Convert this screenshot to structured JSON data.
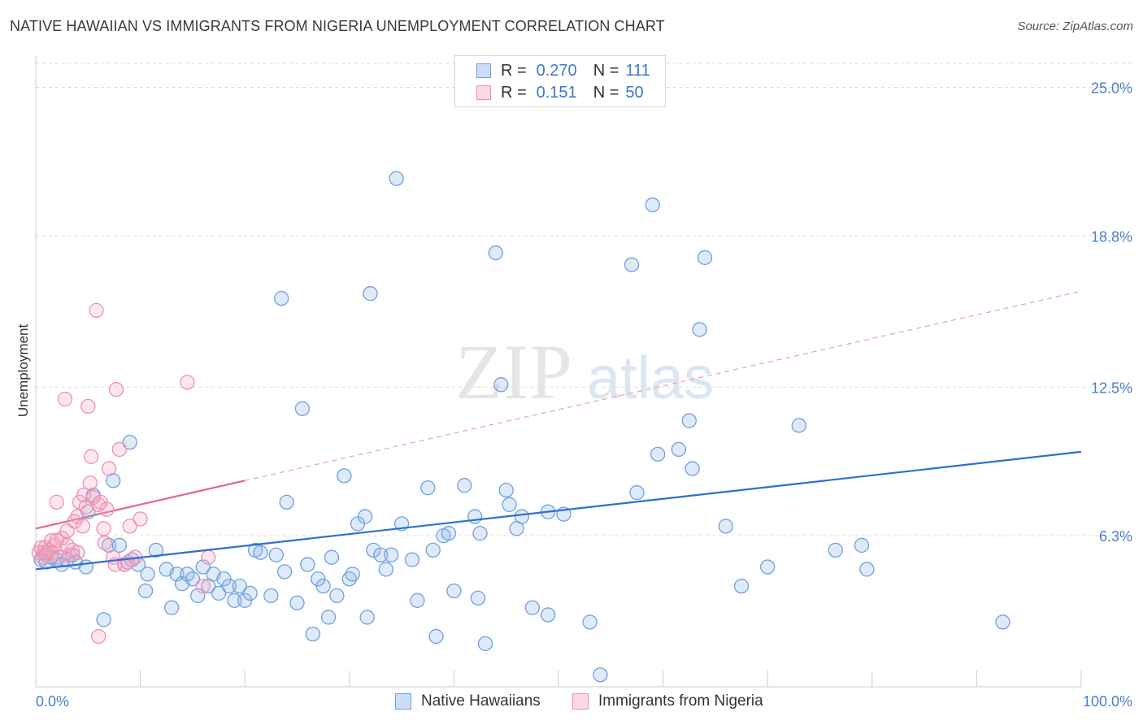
{
  "title": "NATIVE HAWAIIAN VS IMMIGRANTS FROM NIGERIA UNEMPLOYMENT CORRELATION CHART",
  "source": "Source: ZipAtlas.com",
  "watermark": {
    "zip": "ZIP",
    "atlas": "atlas"
  },
  "legend": {
    "rows": [
      {
        "r_label": "R =",
        "r_value": "0.270",
        "n_label": "N =",
        "n_value": "111",
        "color": "#6fa0e0"
      },
      {
        "r_label": "R =",
        "r_value": "0.151",
        "n_label": "N =",
        "n_value": "50",
        "color": "#f08fb0"
      }
    ]
  },
  "bottom_legend": [
    {
      "label": "Native Hawaiians",
      "color": "#6fa0e0"
    },
    {
      "label": "Immigrants from Nigeria",
      "color": "#f08fb0"
    }
  ],
  "chart_data": {
    "type": "scatter",
    "title": "NATIVE HAWAIIAN VS IMMIGRANTS FROM NIGERIA UNEMPLOYMENT CORRELATION CHART",
    "xlabel": "",
    "ylabel": "Unemployment",
    "xlim": [
      0,
      100
    ],
    "ylim": [
      0,
      26
    ],
    "x_tick_labels": [
      "0.0%",
      "100.0%"
    ],
    "y_ticks": [
      6.3,
      12.5,
      18.8,
      25.0
    ],
    "y_tick_labels": [
      "6.3%",
      "12.5%",
      "18.8%",
      "25.0%"
    ],
    "grid": true,
    "series": [
      {
        "name": "Native Hawaiians",
        "color": "#6fa0e0",
        "trend": {
          "x": [
            0,
            100
          ],
          "y": [
            4.9,
            9.8
          ],
          "color": "#2f6fd0"
        },
        "points": [
          [
            0.5,
            5.3
          ],
          [
            0.8,
            5.6
          ],
          [
            1.0,
            5.2
          ],
          [
            1.5,
            5.4
          ],
          [
            2.0,
            5.3
          ],
          [
            2.5,
            5.1
          ],
          [
            3.0,
            5.3
          ],
          [
            3.5,
            5.5
          ],
          [
            3.8,
            5.2
          ],
          [
            4.8,
            5.0
          ],
          [
            5.5,
            8.0
          ],
          [
            5.0,
            7.3
          ],
          [
            6.5,
            2.8
          ],
          [
            7.0,
            5.9
          ],
          [
            7.4,
            8.6
          ],
          [
            8.0,
            5.9
          ],
          [
            8.5,
            5.1
          ],
          [
            9.0,
            10.2
          ],
          [
            9.2,
            5.3
          ],
          [
            9.8,
            5.1
          ],
          [
            10.5,
            4.0
          ],
          [
            10.7,
            4.7
          ],
          [
            11.5,
            5.7
          ],
          [
            12.5,
            4.9
          ],
          [
            13.0,
            3.3
          ],
          [
            13.5,
            4.7
          ],
          [
            14.0,
            4.3
          ],
          [
            14.5,
            4.7
          ],
          [
            15.0,
            4.5
          ],
          [
            15.5,
            3.8
          ],
          [
            16.0,
            5.0
          ],
          [
            16.5,
            4.2
          ],
          [
            17.0,
            4.7
          ],
          [
            17.5,
            3.9
          ],
          [
            18.0,
            4.5
          ],
          [
            18.5,
            4.2
          ],
          [
            19.0,
            3.6
          ],
          [
            19.5,
            4.2
          ],
          [
            20.0,
            3.6
          ],
          [
            20.5,
            3.9
          ],
          [
            21.0,
            5.7
          ],
          [
            21.5,
            5.6
          ],
          [
            22.5,
            3.8
          ],
          [
            23.0,
            5.5
          ],
          [
            23.5,
            16.2
          ],
          [
            23.8,
            4.8
          ],
          [
            24.0,
            7.7
          ],
          [
            25.0,
            3.5
          ],
          [
            25.5,
            11.6
          ],
          [
            26.0,
            5.1
          ],
          [
            26.5,
            2.2
          ],
          [
            27.0,
            4.5
          ],
          [
            27.5,
            4.2
          ],
          [
            28.0,
            2.9
          ],
          [
            28.3,
            5.4
          ],
          [
            28.8,
            3.8
          ],
          [
            29.5,
            8.8
          ],
          [
            30.0,
            4.5
          ],
          [
            30.3,
            4.7
          ],
          [
            30.8,
            6.8
          ],
          [
            31.5,
            7.1
          ],
          [
            31.7,
            2.9
          ],
          [
            32.0,
            16.4
          ],
          [
            32.3,
            5.7
          ],
          [
            33.0,
            5.5
          ],
          [
            33.5,
            4.9
          ],
          [
            34.0,
            5.5
          ],
          [
            34.5,
            21.2
          ],
          [
            35.0,
            6.8
          ],
          [
            36.0,
            5.3
          ],
          [
            36.5,
            3.6
          ],
          [
            37.5,
            8.3
          ],
          [
            38.0,
            5.7
          ],
          [
            38.3,
            2.1
          ],
          [
            39.0,
            6.3
          ],
          [
            39.5,
            6.4
          ],
          [
            40.0,
            4.0
          ],
          [
            41.0,
            8.4
          ],
          [
            42.0,
            7.1
          ],
          [
            42.3,
            3.7
          ],
          [
            42.5,
            6.4
          ],
          [
            43.0,
            1.8
          ],
          [
            44.0,
            18.1
          ],
          [
            44.5,
            12.6
          ],
          [
            45.0,
            8.2
          ],
          [
            45.3,
            7.6
          ],
          [
            46.0,
            6.6
          ],
          [
            46.5,
            7.1
          ],
          [
            47.5,
            3.3
          ],
          [
            49.0,
            7.3
          ],
          [
            49.0,
            3.0
          ],
          [
            50.5,
            7.2
          ],
          [
            53.0,
            2.7
          ],
          [
            54.0,
            0.5
          ],
          [
            57.0,
            17.6
          ],
          [
            57.5,
            8.1
          ],
          [
            59.0,
            20.1
          ],
          [
            59.5,
            9.7
          ],
          [
            61.5,
            9.9
          ],
          [
            62.5,
            11.1
          ],
          [
            62.8,
            9.1
          ],
          [
            63.5,
            14.9
          ],
          [
            64.0,
            17.9
          ],
          [
            66.0,
            6.7
          ],
          [
            67.5,
            4.2
          ],
          [
            70.0,
            5.0
          ],
          [
            73.0,
            10.9
          ],
          [
            76.5,
            5.7
          ],
          [
            79.0,
            5.9
          ],
          [
            79.5,
            4.9
          ],
          [
            92.5,
            2.7
          ]
        ]
      },
      {
        "name": "Immigrants from Nigeria",
        "color": "#f08fb0",
        "trend": {
          "x": [
            0,
            20
          ],
          "y": [
            6.6,
            8.6
          ],
          "color": "#e06690"
        },
        "trend_extension": {
          "x": [
            20,
            100
          ],
          "y": [
            8.6,
            16.5
          ]
        },
        "points": [
          [
            0.3,
            5.6
          ],
          [
            0.5,
            5.8
          ],
          [
            0.7,
            5.4
          ],
          [
            0.9,
            5.8
          ],
          [
            1.0,
            5.5
          ],
          [
            1.1,
            5.6
          ],
          [
            1.3,
            5.7
          ],
          [
            1.5,
            6.1
          ],
          [
            1.6,
            5.6
          ],
          [
            1.8,
            5.9
          ],
          [
            2.0,
            7.7
          ],
          [
            2.2,
            5.4
          ],
          [
            2.5,
            6.2
          ],
          [
            2.8,
            12.0
          ],
          [
            3.0,
            6.5
          ],
          [
            3.2,
            5.5
          ],
          [
            3.5,
            5.7
          ],
          [
            3.7,
            6.9
          ],
          [
            4.0,
            7.1
          ],
          [
            4.2,
            7.7
          ],
          [
            4.5,
            6.7
          ],
          [
            4.6,
            8.0
          ],
          [
            4.8,
            7.5
          ],
          [
            5.0,
            11.7
          ],
          [
            5.2,
            8.5
          ],
          [
            5.3,
            9.6
          ],
          [
            5.5,
            7.9
          ],
          [
            5.8,
            15.7
          ],
          [
            6.0,
            7.6
          ],
          [
            6.2,
            7.7
          ],
          [
            6.5,
            6.6
          ],
          [
            6.6,
            6.0
          ],
          [
            6.8,
            7.4
          ],
          [
            7.0,
            9.1
          ],
          [
            7.4,
            5.4
          ],
          [
            7.6,
            5.1
          ],
          [
            7.7,
            12.4
          ],
          [
            8.0,
            9.9
          ],
          [
            8.5,
            5.1
          ],
          [
            8.8,
            5.2
          ],
          [
            9.0,
            6.7
          ],
          [
            9.5,
            5.4
          ],
          [
            10.0,
            7.0
          ],
          [
            2.0,
            6.1
          ],
          [
            3.0,
            5.9
          ],
          [
            4.0,
            5.6
          ],
          [
            6.0,
            2.1
          ],
          [
            14.5,
            12.7
          ],
          [
            16.0,
            4.2
          ],
          [
            16.5,
            5.4
          ]
        ]
      }
    ]
  }
}
